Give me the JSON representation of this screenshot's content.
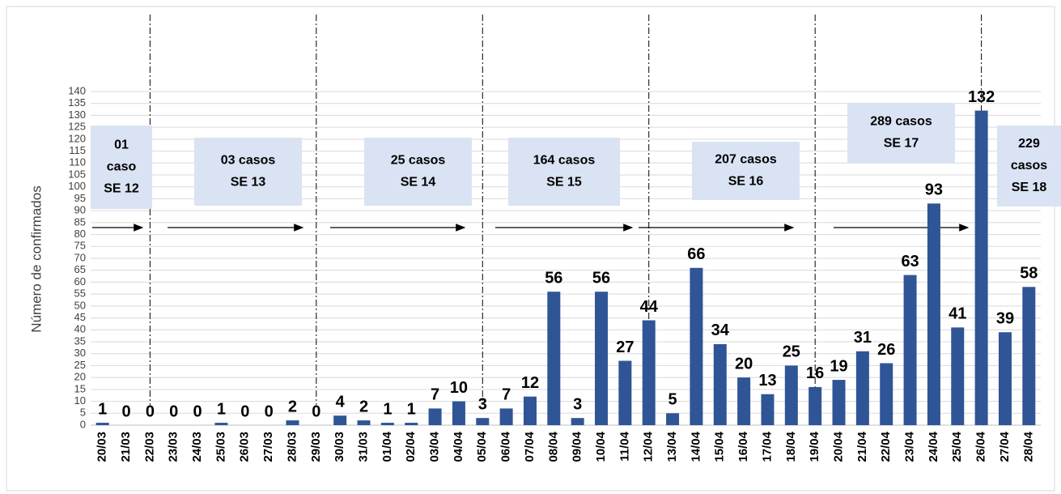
{
  "chart_data": {
    "type": "bar",
    "ylabel": "Número de confirmados",
    "categories": [
      "20/03",
      "21/03",
      "22/03",
      "23/03",
      "24/03",
      "25/03",
      "26/03",
      "27/03",
      "28/03",
      "29/03",
      "30/03",
      "31/03",
      "01/04",
      "02/04",
      "03/04",
      "04/04",
      "05/04",
      "06/04",
      "07/04",
      "08/04",
      "09/04",
      "10/04",
      "11/04",
      "12/04",
      "13/04",
      "14/04",
      "15/04",
      "16/04",
      "17/04",
      "18/04",
      "19/04",
      "20/04",
      "21/04",
      "22/04",
      "23/04",
      "24/04",
      "25/04",
      "26/04",
      "27/04",
      "28/04"
    ],
    "values": [
      1,
      0,
      0,
      0,
      0,
      1,
      0,
      0,
      2,
      0,
      4,
      2,
      1,
      1,
      7,
      10,
      3,
      7,
      12,
      56,
      3,
      56,
      27,
      44,
      5,
      66,
      34,
      20,
      13,
      25,
      16,
      19,
      31,
      26,
      63,
      93,
      41,
      132,
      39,
      58
    ],
    "color": "#2f5597",
    "ylim": [
      0,
      140
    ],
    "yticks": [
      0,
      5,
      10,
      15,
      20,
      25,
      30,
      35,
      40,
      45,
      50,
      55,
      60,
      65,
      70,
      75,
      80,
      85,
      90,
      95,
      100,
      105,
      110,
      115,
      120,
      125,
      130,
      135,
      140
    ],
    "grid": true,
    "annotations": [
      {
        "lines": [
          "01",
          "caso",
          "SE 12"
        ]
      },
      {
        "lines": [
          "03 casos",
          "SE 13"
        ]
      },
      {
        "lines": [
          "25 casos",
          "SE 14"
        ]
      },
      {
        "lines": [
          "164 casos",
          "SE 15"
        ]
      },
      {
        "lines": [
          "207 casos",
          "SE 16"
        ]
      },
      {
        "lines": [
          "289 casos",
          "SE 17"
        ]
      },
      {
        "lines": [
          "229",
          "casos",
          "SE 18"
        ]
      }
    ]
  }
}
